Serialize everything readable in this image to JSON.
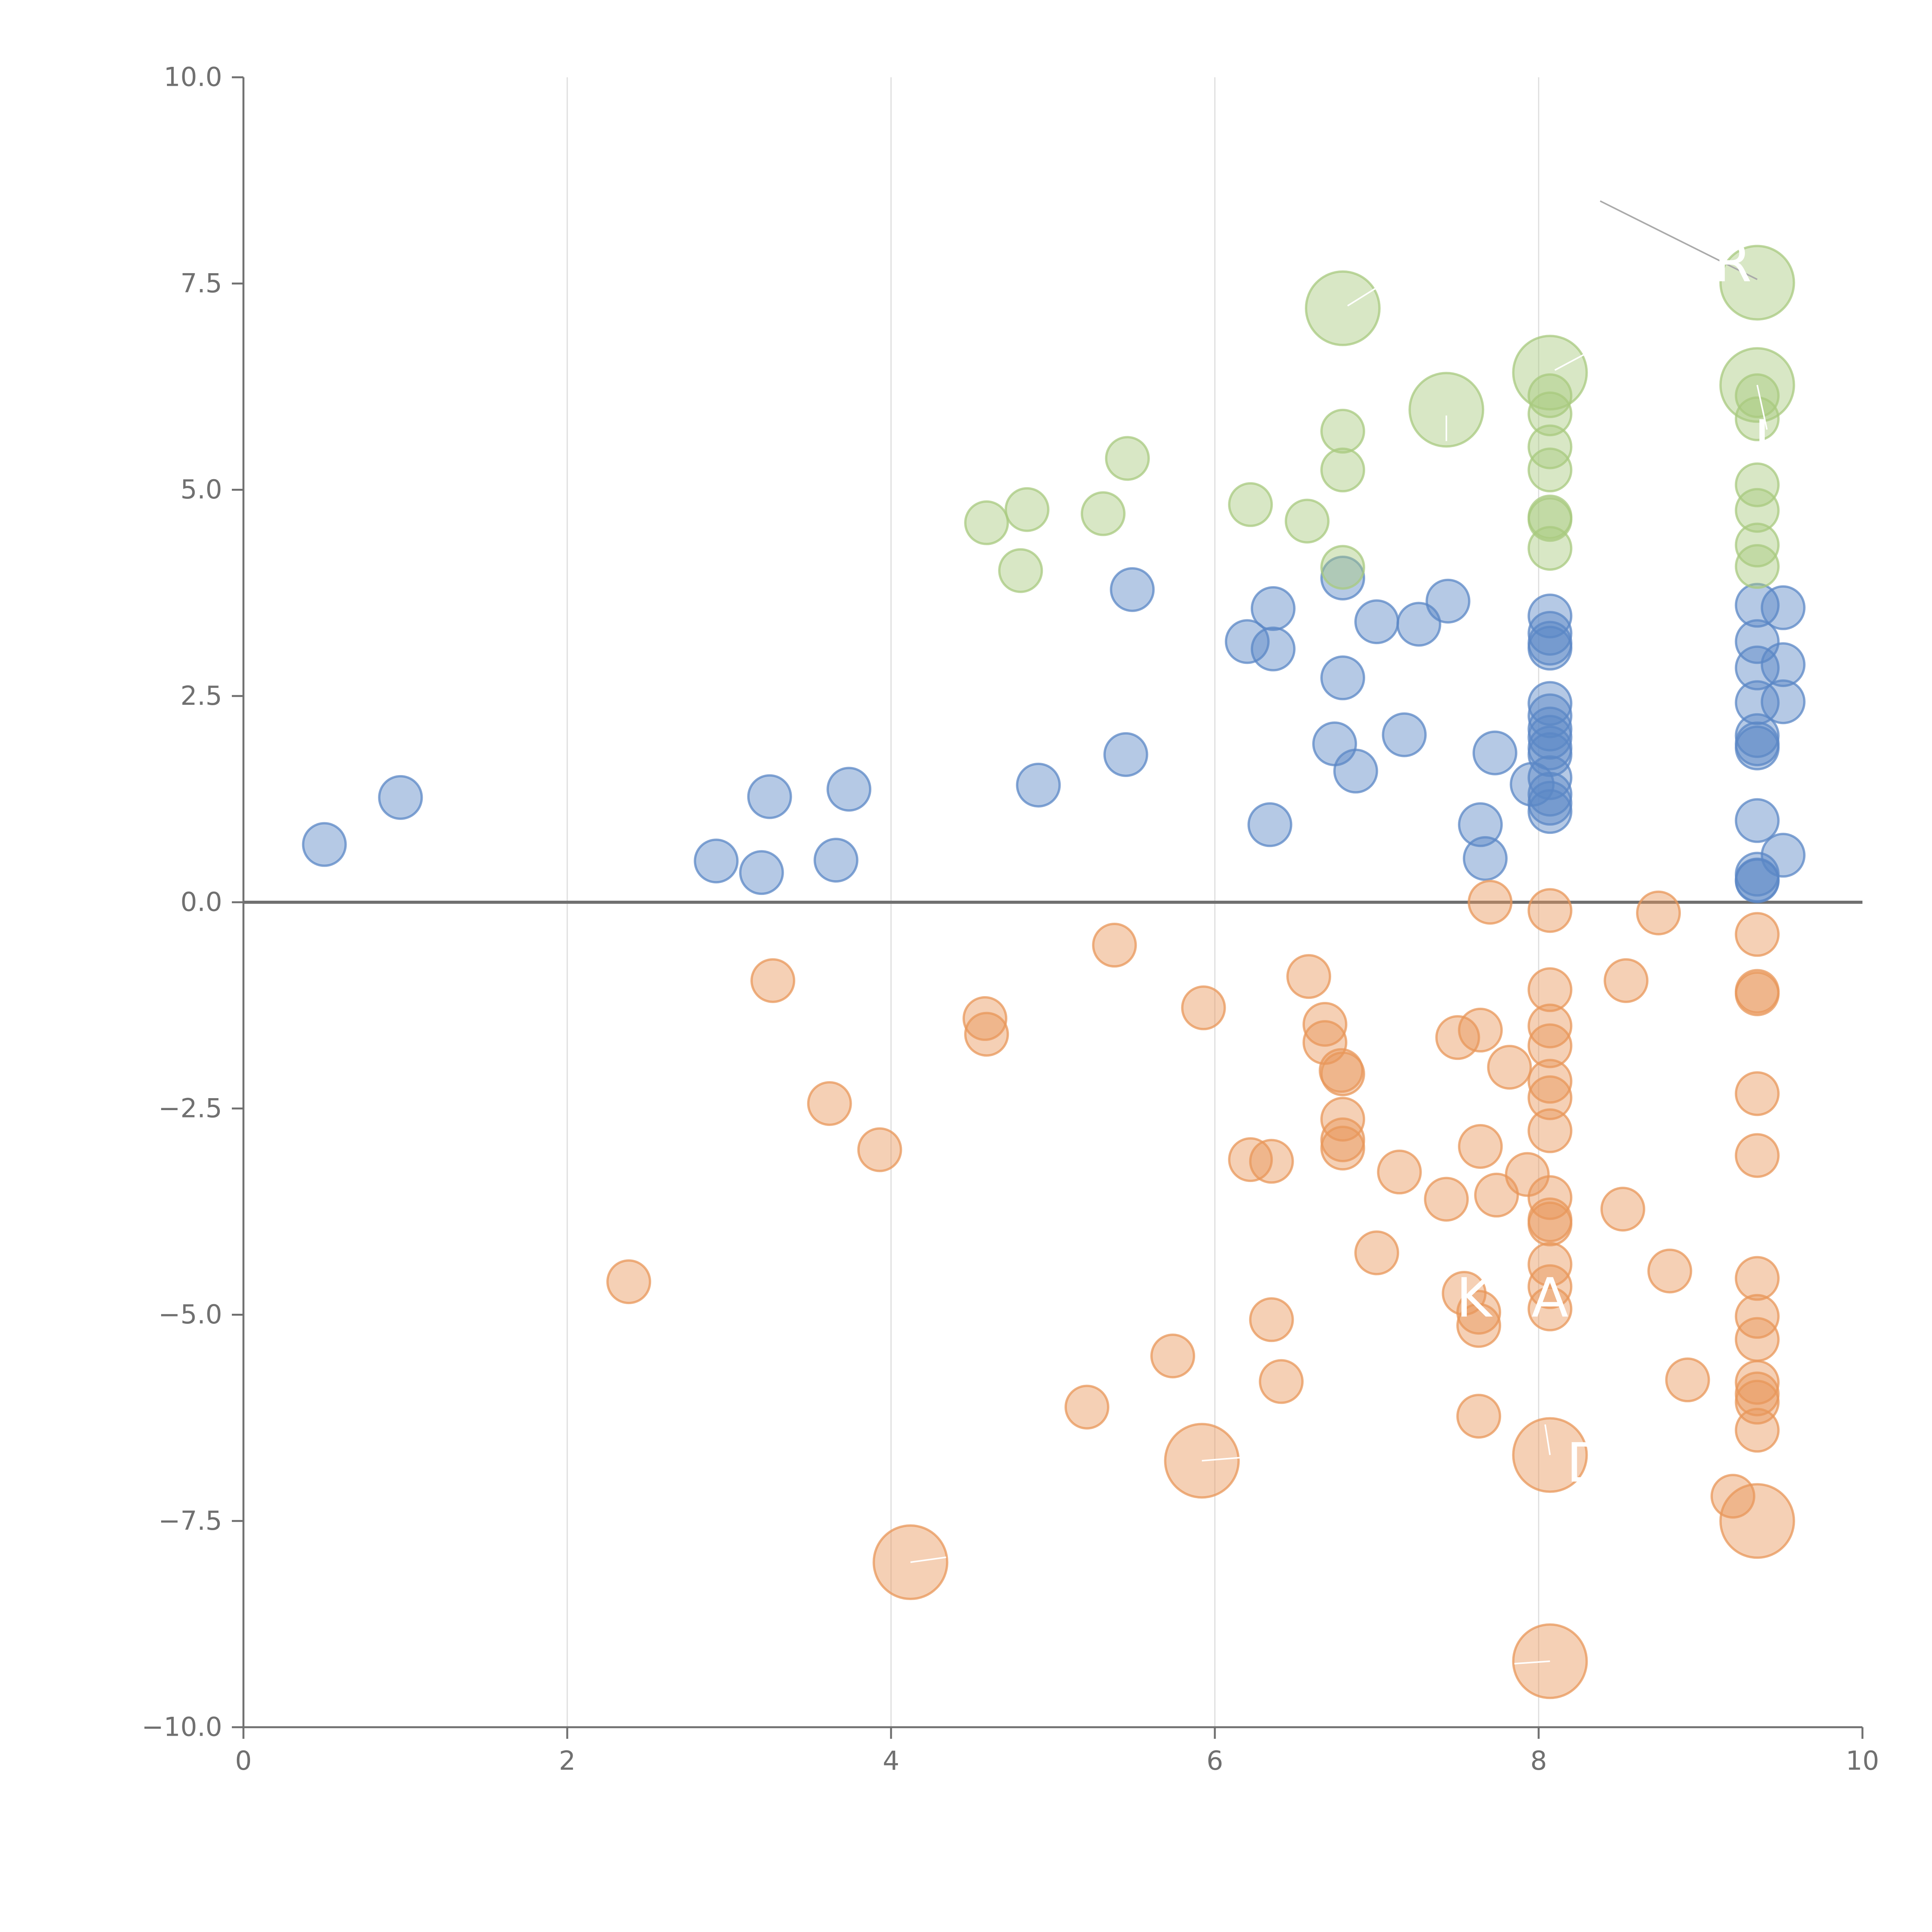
{
  "chart_data": {
    "type": "scatter",
    "title": "",
    "xlabel": "",
    "ylabel": "",
    "xlim": [
      0,
      10
    ],
    "ylim": [
      -10,
      10
    ],
    "x_ticks": [
      0,
      2,
      4,
      6,
      8,
      10
    ],
    "x_tick_labels": [
      "0",
      "2",
      "4",
      "6",
      "8",
      "10"
    ],
    "y_ticks": [
      10,
      7.5,
      5,
      2.5,
      0,
      -2.5,
      -5,
      -7.5,
      -10
    ],
    "y_tick_labels": [
      "10.0",
      "7.5",
      "5.0",
      "2.5",
      "0.0",
      "−2.5",
      "−5.0",
      "−7.5",
      "−10.0"
    ],
    "vertical_gridlines": true,
    "zero_line": true,
    "legend": "none",
    "series": [
      {
        "name": "blue",
        "color": "#5b87c5",
        "size": "small",
        "points": [
          [
            0.5,
            0.7
          ],
          [
            0.97,
            1.27
          ],
          [
            2.92,
            0.5
          ],
          [
            3.2,
            0.36
          ],
          [
            3.25,
            1.28
          ],
          [
            3.66,
            0.51
          ],
          [
            3.74,
            1.37
          ],
          [
            4.91,
            1.42
          ],
          [
            5.45,
            1.79
          ],
          [
            5.49,
            3.79
          ],
          [
            6.2,
            3.16
          ],
          [
            6.34,
            0.94
          ],
          [
            6.36,
            3.56
          ],
          [
            6.36,
            3.07
          ],
          [
            6.74,
            1.92
          ],
          [
            6.79,
            3.93
          ],
          [
            6.79,
            2.72
          ],
          [
            6.87,
            1.59
          ],
          [
            7.0,
            3.4
          ],
          [
            7.17,
            2.03
          ],
          [
            7.26,
            3.37
          ],
          [
            7.44,
            3.65
          ],
          [
            7.64,
            0.94
          ],
          [
            7.67,
            0.53
          ],
          [
            7.73,
            1.81
          ],
          [
            7.96,
            1.43
          ],
          [
            8.07,
            3.47
          ],
          [
            8.07,
            3.26
          ],
          [
            8.07,
            3.14
          ],
          [
            8.07,
            3.08
          ],
          [
            8.07,
            2.41
          ],
          [
            8.07,
            2.26
          ],
          [
            8.07,
            2.1
          ],
          [
            8.07,
            2.0
          ],
          [
            8.07,
            1.87
          ],
          [
            8.07,
            1.79
          ],
          [
            8.07,
            1.51
          ],
          [
            8.07,
            1.31
          ],
          [
            8.07,
            1.2
          ],
          [
            8.07,
            1.1
          ],
          [
            9.35,
            3.6
          ],
          [
            9.35,
            3.16
          ],
          [
            9.35,
            2.84
          ],
          [
            9.35,
            2.42
          ],
          [
            9.35,
            2.02
          ],
          [
            9.35,
            1.92
          ],
          [
            9.35,
            1.87
          ],
          [
            9.35,
            0.99
          ],
          [
            9.35,
            0.34
          ],
          [
            9.35,
            0.27
          ],
          [
            9.35,
            0.26
          ],
          [
            9.51,
            3.57
          ],
          [
            9.51,
            2.88
          ],
          [
            9.51,
            2.43
          ],
          [
            9.51,
            0.57
          ]
        ]
      },
      {
        "name": "green",
        "color": "#a8c97f",
        "size": "small",
        "points": [
          [
            4.59,
            4.6
          ],
          [
            4.8,
            4.02
          ],
          [
            4.84,
            4.76
          ],
          [
            5.31,
            4.71
          ],
          [
            5.46,
            5.38
          ],
          [
            6.22,
            4.82
          ],
          [
            6.57,
            4.62
          ],
          [
            6.79,
            5.71
          ],
          [
            6.79,
            5.24
          ],
          [
            6.79,
            4.06
          ],
          [
            8.07,
            6.14
          ],
          [
            8.07,
            5.92
          ],
          [
            8.07,
            5.52
          ],
          [
            8.07,
            5.24
          ],
          [
            8.07,
            4.67
          ],
          [
            8.07,
            4.64
          ],
          [
            8.07,
            4.29
          ],
          [
            9.35,
            6.14
          ],
          [
            9.35,
            5.86
          ],
          [
            9.35,
            5.06
          ],
          [
            9.35,
            4.75
          ],
          [
            9.35,
            4.33
          ],
          [
            9.35,
            4.07
          ]
        ]
      },
      {
        "name": "green-highlight",
        "color": "#a8c97f",
        "size": "large",
        "points": [
          [
            6.79,
            7.2
          ],
          [
            7.43,
            5.97
          ],
          [
            8.07,
            6.42
          ],
          [
            9.35,
            7.51
          ],
          [
            9.35,
            6.27
          ]
        ]
      },
      {
        "name": "orange",
        "color": "#e8975a",
        "size": "small",
        "points": [
          [
            2.38,
            -4.6
          ],
          [
            3.27,
            -0.95
          ],
          [
            3.62,
            -2.44
          ],
          [
            3.93,
            -3.0
          ],
          [
            4.58,
            -1.41
          ],
          [
            4.59,
            -1.6
          ],
          [
            5.38,
            -0.52
          ],
          [
            5.21,
            -6.12
          ],
          [
            5.74,
            -5.5
          ],
          [
            5.93,
            -1.28
          ],
          [
            6.22,
            -3.12
          ],
          [
            6.35,
            -3.14
          ],
          [
            6.35,
            -5.06
          ],
          [
            6.41,
            -5.81
          ],
          [
            6.58,
            -0.9
          ],
          [
            6.68,
            -1.48
          ],
          [
            6.68,
            -1.7
          ],
          [
            6.78,
            -2.04
          ],
          [
            6.79,
            -2.08
          ],
          [
            6.79,
            -2.63
          ],
          [
            6.79,
            -2.88
          ],
          [
            6.79,
            -2.98
          ],
          [
            7.0,
            -4.25
          ],
          [
            7.14,
            -3.27
          ],
          [
            7.43,
            -3.6
          ],
          [
            7.5,
            -1.64
          ],
          [
            7.54,
            -4.74
          ],
          [
            7.63,
            -4.97
          ],
          [
            7.63,
            -5.13
          ],
          [
            7.63,
            -6.23
          ],
          [
            7.64,
            -1.55
          ],
          [
            7.64,
            -2.96
          ],
          [
            7.7,
            0.0
          ],
          [
            7.74,
            -3.55
          ],
          [
            7.82,
            -2.0
          ],
          [
            7.93,
            -3.3
          ],
          [
            8.07,
            -0.1
          ],
          [
            8.07,
            -1.06
          ],
          [
            8.07,
            -1.5
          ],
          [
            8.07,
            -1.74
          ],
          [
            8.07,
            -2.17
          ],
          [
            8.07,
            -2.37
          ],
          [
            8.07,
            -2.77
          ],
          [
            8.07,
            -3.58
          ],
          [
            8.07,
            -3.85
          ],
          [
            8.07,
            -3.9
          ],
          [
            8.07,
            -4.39
          ],
          [
            8.07,
            -4.66
          ],
          [
            8.07,
            -4.93
          ],
          [
            8.52,
            -3.72
          ],
          [
            8.54,
            -0.95
          ],
          [
            8.74,
            -0.13
          ],
          [
            8.81,
            -4.47
          ],
          [
            8.92,
            -5.79
          ],
          [
            9.2,
            -7.2
          ],
          [
            9.35,
            -0.39
          ],
          [
            9.35,
            -1.08
          ],
          [
            9.35,
            -1.11
          ],
          [
            9.35,
            -2.32
          ],
          [
            9.35,
            -3.07
          ],
          [
            9.35,
            -4.56
          ],
          [
            9.35,
            -5.02
          ],
          [
            9.35,
            -5.3
          ],
          [
            9.35,
            -5.82
          ],
          [
            9.35,
            -5.96
          ],
          [
            9.35,
            -6.06
          ],
          [
            9.35,
            -6.4
          ]
        ]
      },
      {
        "name": "orange-highlight",
        "color": "#e8975a",
        "size": "large",
        "points": [
          [
            4.12,
            -8.0
          ],
          [
            5.92,
            -6.77
          ],
          [
            8.07,
            -6.7
          ],
          [
            8.07,
            -9.2
          ],
          [
            9.35,
            -7.5
          ]
        ]
      }
    ],
    "point_labels": [
      {
        "text": "R",
        "x": 9.2,
        "y": 7.75
      },
      {
        "text": "I",
        "x": 9.38,
        "y": 5.6
      },
      {
        "text": "K",
        "x": 7.6,
        "y": -4.8
      },
      {
        "text": "A",
        "x": 8.07,
        "y": -4.8
      },
      {
        "text": "D",
        "x": 8.3,
        "y": -6.8
      }
    ],
    "annotations": [
      {
        "type": "leader-line",
        "color": "#aaaaaa",
        "from": [
          8.38,
          8.5
        ],
        "to": [
          9.35,
          7.55
        ]
      },
      {
        "type": "leader-line",
        "color": "#ffffff",
        "from": [
          6.82,
          7.23
        ],
        "to": [
          7.0,
          7.45
        ]
      },
      {
        "type": "leader-line",
        "color": "#ffffff",
        "from": [
          7.43,
          5.59
        ],
        "to": [
          7.43,
          5.9
        ]
      },
      {
        "type": "leader-line",
        "color": "#ffffff",
        "from": [
          8.1,
          6.45
        ],
        "to": [
          8.3,
          6.66
        ]
      },
      {
        "type": "leader-line",
        "color": "#ffffff",
        "from": [
          9.35,
          6.27
        ],
        "to": [
          9.41,
          5.73
        ]
      },
      {
        "type": "leader-line",
        "color": "#ffffff",
        "from": [
          5.92,
          -6.77
        ],
        "to": [
          6.17,
          -6.73
        ]
      },
      {
        "type": "leader-line",
        "color": "#ffffff",
        "from": [
          4.12,
          -8.0
        ],
        "to": [
          4.34,
          -7.94
        ]
      },
      {
        "type": "leader-line",
        "color": "#ffffff",
        "from": [
          8.07,
          -6.7
        ],
        "to": [
          8.04,
          -6.33
        ]
      },
      {
        "type": "leader-line",
        "color": "#ffffff",
        "from": [
          8.07,
          -9.2
        ],
        "to": [
          7.85,
          -9.23
        ]
      }
    ]
  }
}
